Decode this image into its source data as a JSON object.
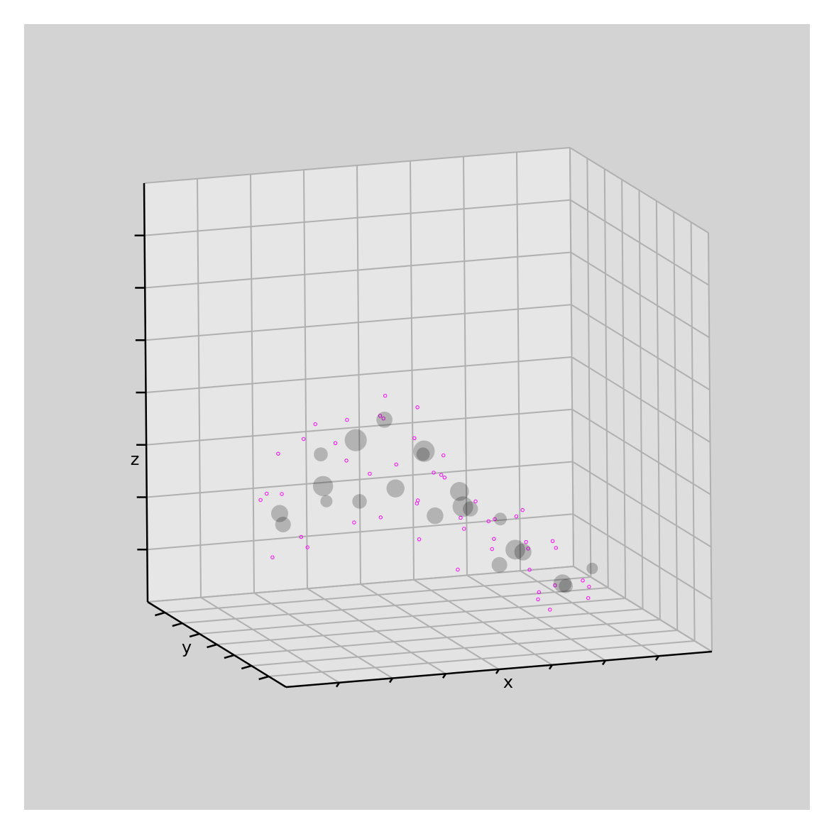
{
  "chart_data": {
    "type": "scatter3d",
    "xlabel": "x",
    "ylabel": "y",
    "zlabel": "z",
    "xlim": [
      0,
      10
    ],
    "ylim": [
      0,
      10
    ],
    "zlim": [
      0,
      10
    ],
    "series": [
      {
        "color": "#ff00ff",
        "x": [
          1.2,
          1.8,
          2.5,
          3.1,
          3.6,
          4.2,
          4.8,
          5.3,
          5.9,
          6.4,
          7.0,
          7.6,
          8.1,
          8.6,
          1.5,
          2.2,
          2.9,
          3.4,
          4.0,
          4.6,
          5.1,
          5.7,
          6.2,
          6.8,
          7.3,
          7.9,
          8.4,
          1.0,
          2.0,
          3.0,
          3.8,
          4.4,
          5.0,
          5.5,
          6.0,
          6.6,
          7.2,
          7.7,
          8.3,
          2.6,
          3.3,
          4.7,
          5.4,
          6.1,
          6.9,
          7.5,
          8.0,
          1.7,
          2.4,
          4.1
        ],
        "y": [
          5,
          6,
          4,
          5,
          3,
          6,
          4,
          5,
          3,
          5,
          4,
          6,
          3,
          5,
          3,
          7,
          2,
          6,
          5,
          7,
          3,
          6,
          4,
          6,
          3,
          5,
          4,
          4,
          5,
          7,
          2,
          4,
          6,
          4,
          7,
          2,
          5,
          7,
          6,
          3,
          4,
          2,
          7,
          5,
          3,
          4,
          7,
          7,
          6,
          3
        ],
        "z": [
          3.5,
          4.2,
          4.8,
          5.1,
          4.4,
          4.9,
          3.9,
          3.6,
          2.9,
          2.4,
          1.9,
          1.6,
          1.1,
          0.8,
          2.6,
          3.0,
          3.4,
          3.9,
          5.6,
          4.6,
          3.0,
          3.3,
          2.2,
          1.5,
          1.2,
          1.8,
          0.6,
          2.2,
          2.4,
          4.6,
          2.8,
          3.2,
          4.3,
          2.5,
          3.6,
          1.3,
          2.6,
          2.0,
          1.4,
          3.1,
          4.0,
          2.0,
          4.8,
          2.9,
          0.9,
          0.4,
          0.7,
          2.9,
          4.5,
          3.5
        ]
      },
      {
        "color": "#000000",
        "x": [
          1.5,
          2.2,
          2.8,
          3.3,
          3.9,
          4.3,
          4.9,
          5.4,
          5.8,
          6.3,
          6.7,
          7.2,
          7.8,
          8.2,
          1.9,
          2.6,
          3.7,
          4.5,
          5.2,
          6.0,
          7.0,
          8.5
        ],
        "y": [
          5,
          4,
          6,
          5,
          4,
          6,
          5,
          4,
          5,
          6,
          4,
          5,
          4,
          5,
          6,
          5,
          6,
          3,
          6,
          3,
          6,
          4
        ],
        "z": [
          3.0,
          3.8,
          4.1,
          4.6,
          3.6,
          4.8,
          4.2,
          3.4,
          2.8,
          2.5,
          1.9,
          1.6,
          1.0,
          0.7,
          2.5,
          3.2,
          2.9,
          3.1,
          3.9,
          1.8,
          2.2,
          1.3
        ],
        "sizes": [
          180,
          250,
          120,
          300,
          200,
          160,
          280,
          220,
          260,
          140,
          240,
          180,
          200,
          120,
          150,
          90,
          130,
          170,
          110,
          150,
          100,
          80
        ]
      }
    ]
  }
}
